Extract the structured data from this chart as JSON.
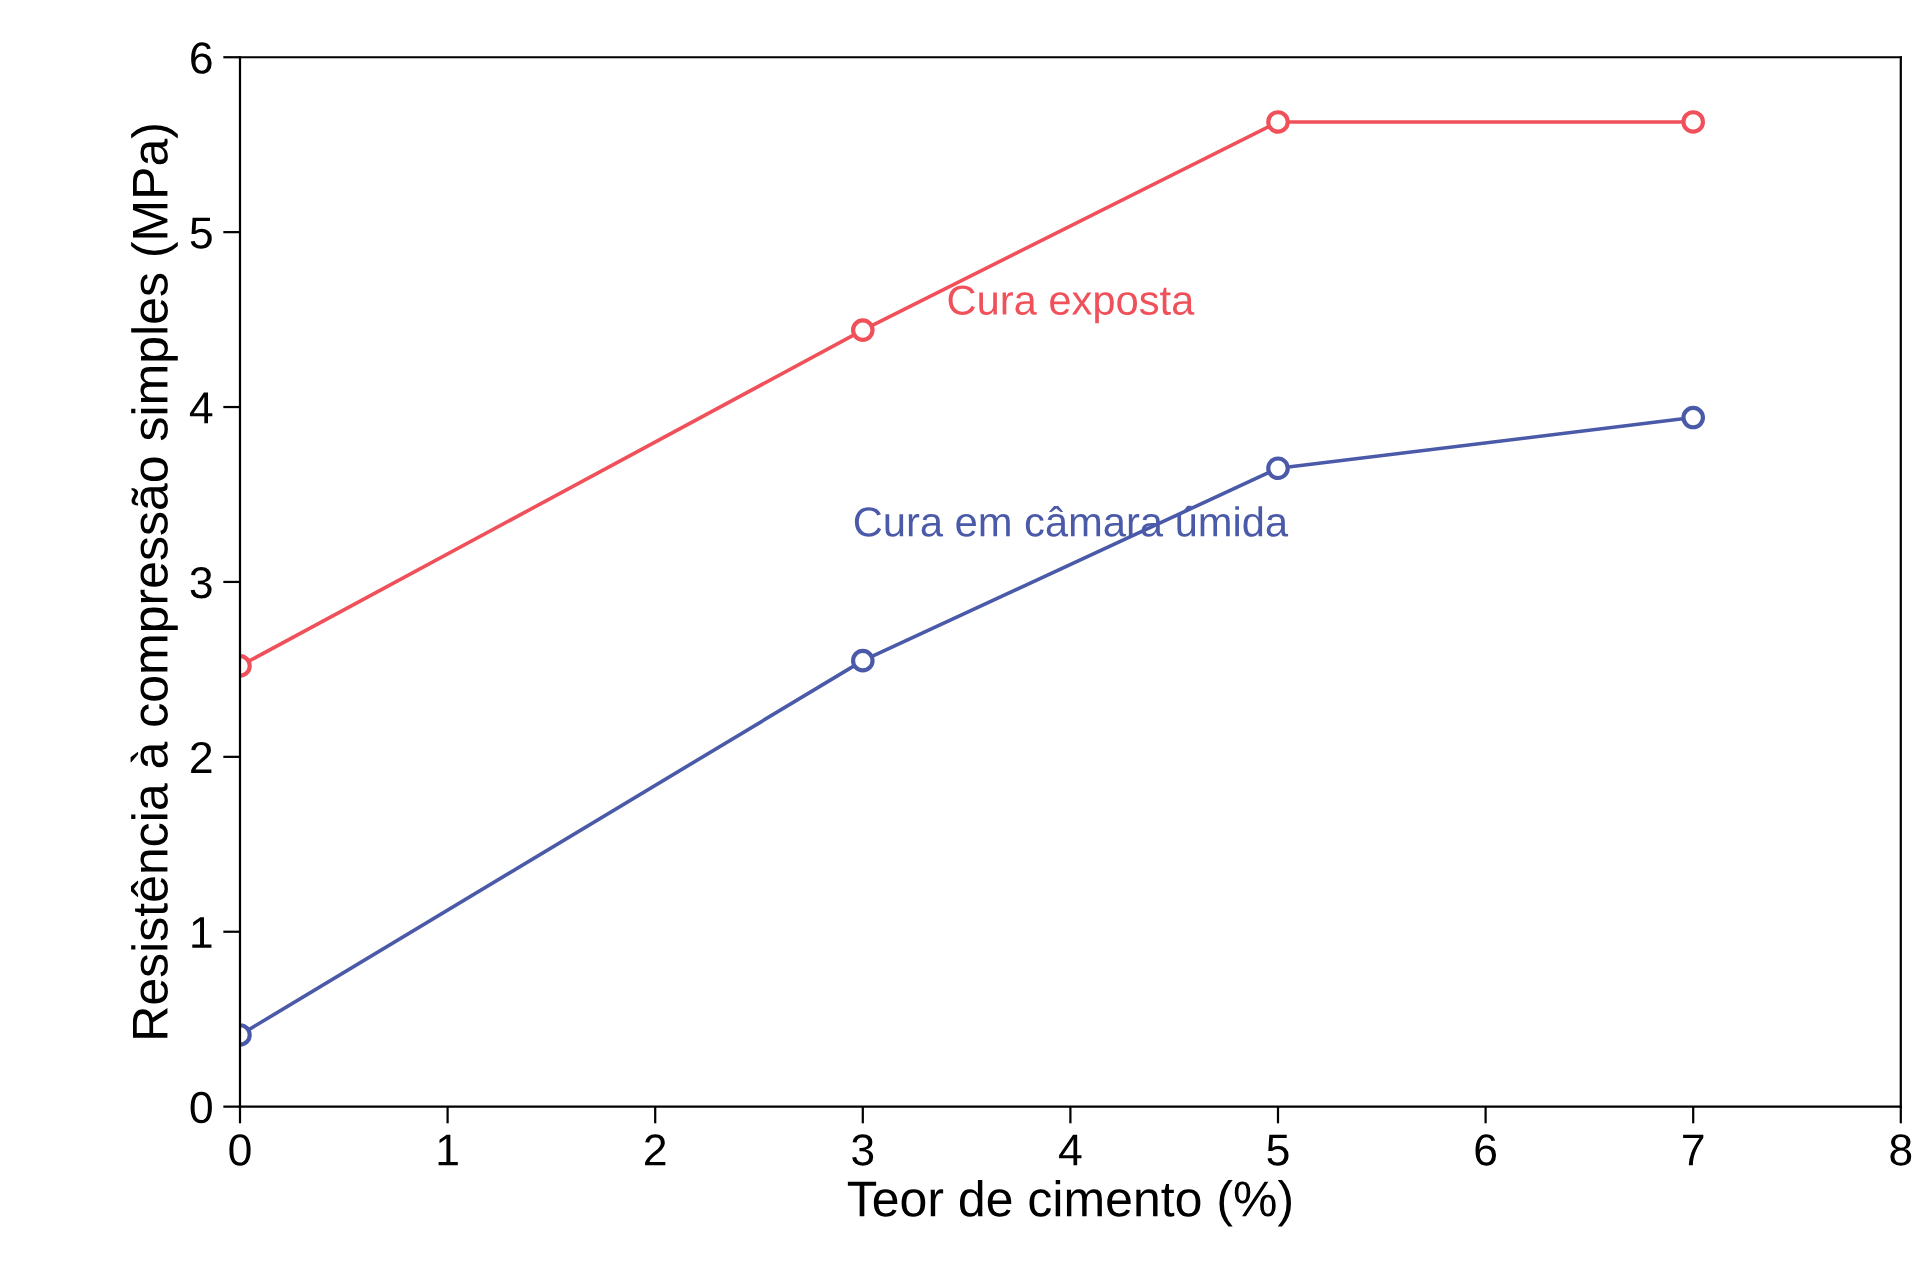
{
  "chart_data": {
    "type": "line",
    "xlabel": "Teor de cimento (%)",
    "ylabel": "Resistência à compressão simples (MPa)",
    "x": [
      0,
      3,
      5,
      7
    ],
    "series": [
      {
        "name": "Cura exposta",
        "color": "#f0505a",
        "values": [
          2.52,
          4.44,
          5.63,
          5.63
        ]
      },
      {
        "name": "Cura em câmara úmida",
        "color": "#4a5aa8",
        "values": [
          0.41,
          2.55,
          3.65,
          3.94
        ]
      }
    ],
    "xlim": [
      0,
      8
    ],
    "xticks": [
      0,
      1,
      2,
      3,
      4,
      5,
      6,
      7,
      8
    ],
    "ylim": [
      0,
      6
    ],
    "yticks": [
      0,
      1,
      2,
      3,
      4,
      5,
      6
    ],
    "grid": false,
    "legend": false,
    "marker": "circle",
    "line_style": "solid"
  }
}
